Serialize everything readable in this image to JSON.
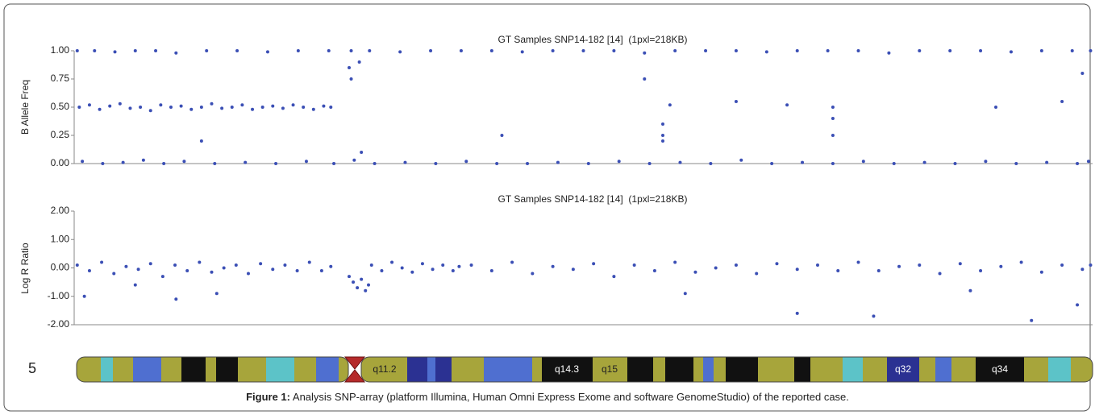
{
  "chart_data": [
    {
      "type": "scatter",
      "title": "GT Samples SNP14-182 [14]  (1pxl=218KB)",
      "y_label": "B Allele Freq",
      "color": "#3b4fb5",
      "xlim": [
        0,
        1000
      ],
      "ylim": [
        0,
        1
      ],
      "yticks": [
        {
          "value": 0,
          "label": "0.00"
        },
        {
          "value": 0.25,
          "label": "0.25"
        },
        {
          "value": 0.5,
          "label": "0.50"
        },
        {
          "value": 0.75,
          "label": "0.75"
        },
        {
          "value": 1,
          "label": "1.00"
        }
      ],
      "x": [
        3,
        20,
        40,
        60,
        80,
        100,
        130,
        160,
        190,
        220,
        250,
        272,
        290,
        320,
        350,
        380,
        410,
        440,
        470,
        500,
        530,
        560,
        590,
        620,
        650,
        680,
        710,
        740,
        770,
        800,
        830,
        860,
        890,
        920,
        950,
        980,
        998,
        8,
        28,
        48,
        68,
        88,
        108,
        138,
        168,
        198,
        228,
        255,
        275,
        295,
        325,
        355,
        385,
        415,
        445,
        475,
        505,
        535,
        565,
        595,
        625,
        655,
        685,
        715,
        745,
        775,
        805,
        835,
        865,
        895,
        925,
        955,
        985,
        996,
        5,
        15,
        25,
        35,
        45,
        55,
        65,
        75,
        85,
        95,
        105,
        115,
        125,
        135,
        145,
        155,
        165,
        175,
        185,
        195,
        205,
        215,
        225,
        235,
        245,
        252,
        270,
        272,
        280,
        282,
        420,
        560,
        578,
        578,
        578,
        585,
        650,
        700,
        745,
        745,
        745,
        905,
        990,
        970,
        125
      ],
      "values": [
        1,
        1,
        0.99,
        1,
        1,
        0.98,
        1,
        1,
        0.99,
        1,
        1,
        1,
        1,
        0.99,
        1,
        1,
        1,
        0.99,
        1,
        1,
        1,
        0.98,
        1,
        1,
        1,
        0.99,
        1,
        1,
        1,
        0.98,
        1,
        1,
        1,
        0.99,
        1,
        1,
        1,
        0.02,
        0,
        0.01,
        0.03,
        0,
        0.02,
        0,
        0.01,
        0,
        0.02,
        0,
        0.03,
        0,
        0.01,
        0,
        0.02,
        0,
        0,
        0.01,
        0,
        0.02,
        0,
        0.01,
        0,
        0.03,
        0,
        0.01,
        0,
        0.02,
        0,
        0.01,
        0,
        0.02,
        0,
        0.01,
        0,
        0.02,
        0.5,
        0.52,
        0.48,
        0.51,
        0.53,
        0.49,
        0.5,
        0.47,
        0.52,
        0.5,
        0.51,
        0.48,
        0.5,
        0.53,
        0.49,
        0.5,
        0.52,
        0.48,
        0.5,
        0.51,
        0.49,
        0.52,
        0.5,
        0.48,
        0.51,
        0.5,
        0.85,
        0.75,
        0.9,
        0.1,
        0.25,
        0.75,
        0.25,
        0.35,
        0.2,
        0.52,
        0.55,
        0.52,
        0.4,
        0.25,
        0.5,
        0.5,
        0.8,
        0.55,
        0.2
      ]
    },
    {
      "type": "scatter",
      "title": "GT Samples SNP14-182 [14]  (1pxl=218KB)",
      "y_label": "Log R Ratio",
      "color": "#3b4fb5",
      "xlim": [
        0,
        1000
      ],
      "ylim": [
        -2,
        2
      ],
      "yticks": [
        {
          "value": -2,
          "label": "-2.00"
        },
        {
          "value": -1,
          "label": "-1.00"
        },
        {
          "value": 0,
          "label": "0.00"
        },
        {
          "value": 1,
          "label": "1.00"
        },
        {
          "value": 2,
          "label": "2.00"
        }
      ],
      "x": [
        3,
        15,
        27,
        39,
        51,
        63,
        75,
        87,
        99,
        111,
        123,
        135,
        147,
        159,
        171,
        183,
        195,
        207,
        219,
        231,
        243,
        252,
        10,
        100,
        140,
        60,
        270,
        274,
        278,
        282,
        286,
        289,
        292,
        302,
        312,
        322,
        332,
        342,
        352,
        362,
        372,
        378,
        390,
        410,
        430,
        450,
        470,
        490,
        510,
        530,
        550,
        570,
        590,
        610,
        630,
        650,
        670,
        690,
        710,
        730,
        750,
        770,
        790,
        810,
        830,
        850,
        870,
        890,
        910,
        930,
        950,
        970,
        990,
        998,
        710,
        785,
        940,
        985,
        600,
        880
      ],
      "values": [
        0.1,
        -0.1,
        0.2,
        -0.2,
        0.05,
        -0.05,
        0.15,
        -0.3,
        0.1,
        -0.1,
        0.2,
        -0.15,
        0,
        0.1,
        -0.2,
        0.15,
        -0.05,
        0.1,
        -0.1,
        0.2,
        -0.1,
        0.05,
        -1.0,
        -1.1,
        -0.9,
        -0.6,
        -0.3,
        -0.5,
        -0.7,
        -0.4,
        -0.8,
        -0.6,
        0.1,
        -0.1,
        0.2,
        0,
        -0.15,
        0.15,
        -0.05,
        0.1,
        -0.1,
        0.05,
        0.1,
        -0.1,
        0.2,
        -0.2,
        0.05,
        -0.05,
        0.15,
        -0.3,
        0.1,
        -0.1,
        0.2,
        -0.15,
        0,
        0.1,
        -0.2,
        0.15,
        -0.05,
        0.1,
        -0.1,
        0.2,
        -0.1,
        0.05,
        0.1,
        -0.2,
        0.15,
        -0.1,
        0.05,
        0.2,
        -0.15,
        0.1,
        -0.05,
        0.1,
        -1.6,
        -1.7,
        -1.85,
        -1.3,
        -0.9,
        -0.8
      ]
    }
  ],
  "ideogram": {
    "chromosome": "5",
    "bands": [
      "q11.2",
      "q14.3",
      "q15",
      "q32",
      "q34"
    ]
  },
  "caption": {
    "label": "Figure 1:",
    "text": " Analysis SNP-array (platform Illumina, Human Omni Express Exome and software GenomeStudio) of the reported case."
  }
}
